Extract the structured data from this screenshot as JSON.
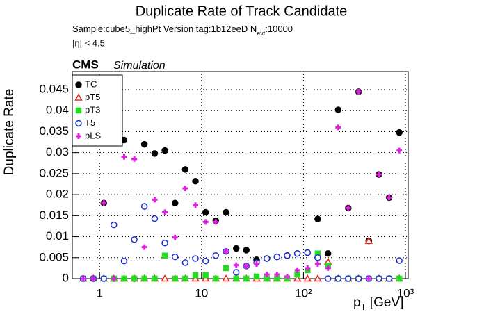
{
  "chart_data": {
    "type": "scatter",
    "title": "Duplicate Rate of Track Candidate",
    "subtitle": [
      "Sample:cube5_highPt   Version tag:1b12eeD  N",
      "evt",
      ":10000"
    ],
    "cut_label": "|η| < 4.5",
    "experiment": "CMS",
    "experiment_note": "Simulation",
    "x_label": [
      "p",
      "T",
      " [GeV]"
    ],
    "y_label": "Duplicate Rate",
    "x_log": true,
    "grid": true,
    "legend": "top-left",
    "xlim": [
      0.54,
      1065
    ],
    "ylim": [
      0,
      0.0493
    ],
    "xticks": [
      1,
      10,
      {
        "value": 100,
        "label": "10²"
      },
      {
        "value": 1000,
        "label": "10³"
      }
    ],
    "yticks": [
      0,
      0.005,
      0.01,
      0.015,
      0.02,
      0.025,
      0.03,
      0.035,
      0.04,
      0.045
    ],
    "x": [
      0.69,
      0.87,
      1.1,
      1.38,
      1.74,
      2.19,
      2.75,
      3.47,
      4.37,
      5.5,
      6.92,
      8.71,
      10.96,
      13.8,
      17.4,
      21.9,
      27.5,
      34.7,
      43.7,
      55,
      69.2,
      87.1,
      109.6,
      138,
      174,
      219,
      275,
      347,
      437,
      550,
      692,
      871
    ],
    "series": [
      {
        "name": "TC",
        "color": "#000000",
        "marker": "circle-filled",
        "values": [
          0,
          0,
          0.018,
          0,
          0.033,
          0,
          0.032,
          0.0298,
          0.0305,
          0.018,
          0.026,
          0.0232,
          0.0158,
          0.0138,
          0.0158,
          0.0072,
          0.0068,
          0.0045,
          0.0048,
          0.0052,
          0.0055,
          0.006,
          0.0062,
          0.0142,
          0.006,
          0.0402,
          0.0168,
          0.0445,
          0.009,
          0.0248,
          0.0193,
          0.0348
        ]
      },
      {
        "name": "pT5",
        "color": "#e8231a",
        "marker": "triangle-open",
        "values": [
          0,
          0,
          0,
          0,
          0,
          0,
          0,
          0,
          0,
          0,
          0,
          0,
          0,
          0,
          0,
          0,
          0,
          0,
          0,
          0,
          0,
          0,
          0,
          0,
          0.004,
          0,
          0,
          0,
          0.009,
          0,
          0,
          0
        ]
      },
      {
        "name": "pT3",
        "color": "#22dd22",
        "marker": "square-filled",
        "values": [
          0,
          0,
          0,
          0,
          0,
          0,
          0,
          0,
          0.0055,
          0,
          0,
          0.0008,
          0.0008,
          0,
          0.0025,
          0,
          0,
          0.0005,
          0,
          0,
          0,
          0.001,
          0.002,
          0.006,
          0.003,
          0,
          0,
          0,
          0,
          0,
          0,
          0
        ]
      },
      {
        "name": "T5",
        "color": "#1a2bd8",
        "marker": "circle-open",
        "values": [
          0,
          0,
          0,
          0.0128,
          0.0042,
          0.0093,
          0.0172,
          0.0143,
          0.0085,
          0.0052,
          0.0038,
          0.0048,
          0.0042,
          0.0055,
          0.0065,
          0.0015,
          0.003,
          0.0038,
          0.0048,
          0.0052,
          0.0055,
          0.006,
          0.0062,
          0.005,
          0,
          0,
          0,
          0,
          0,
          0,
          0,
          0.0043
        ]
      },
      {
        "name": "pLS",
        "color": "#dd22dd",
        "marker": "cross-filled",
        "values": [
          0,
          0,
          0.018,
          0,
          0.029,
          0.0285,
          0.0075,
          0.0188,
          0.0158,
          0.0098,
          0.0215,
          0.0175,
          0.0135,
          0.0135,
          0.0065,
          0.0032,
          0.003,
          0.0035,
          0.001,
          0.001,
          0.0005,
          0.002,
          0.0025,
          0.0035,
          0.0025,
          0.036,
          0.0168,
          0.0445,
          0,
          0.0248,
          0.0193,
          0.0305
        ]
      }
    ]
  }
}
